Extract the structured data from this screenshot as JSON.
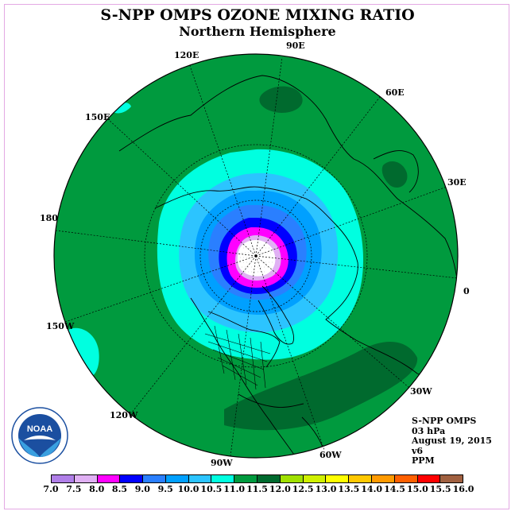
{
  "title": "S-NPP OMPS OZONE MIXING RATIO",
  "subtitle": "Northern Hemisphere",
  "longitude_labels": [
    "90E",
    "60E",
    "30E",
    "0",
    "30W",
    "60W",
    "90W",
    "120W",
    "150W",
    "180",
    "150E",
    "120E"
  ],
  "info": {
    "instrument": "S-NPP OMPS",
    "level": "03 hPa",
    "date": "August 19, 2015",
    "version": "v6",
    "units": "PPM"
  },
  "logo_text": "NOAA",
  "colorbar": {
    "ticks": [
      "7.0",
      "7.5",
      "8.0",
      "8.5",
      "9.0",
      "9.5",
      "10.0",
      "10.5",
      "11.0",
      "11.5",
      "12.0",
      "12.5",
      "13.0",
      "13.5",
      "14.0",
      "14.5",
      "15.0",
      "15.5",
      "16.0"
    ],
    "colors": [
      "#b07fe8",
      "#e0b0f4",
      "#ff00ff",
      "#0000ff",
      "#2a7fff",
      "#00a0ff",
      "#2cc4ff",
      "#00ffe0",
      "#009a3e",
      "#006a2e",
      "#a0e000",
      "#d0f000",
      "#ffff00",
      "#ffc800",
      "#ff9a00",
      "#ff6000",
      "#ff0000",
      "#a06040"
    ]
  },
  "regions": {
    "far": 11.25,
    "outer_ring": 10.75,
    "mid_ring": 10.25,
    "inner_ring": 9.75,
    "core_ring": 9.25,
    "deep_ring": 8.75,
    "pink_core": 8.25,
    "center_cap": 7.75
  },
  "colors": {
    "map_background": "#009a3e",
    "dark_patch": "#006a2e",
    "outline": "#000000",
    "frame": "#e4a9e4"
  }
}
